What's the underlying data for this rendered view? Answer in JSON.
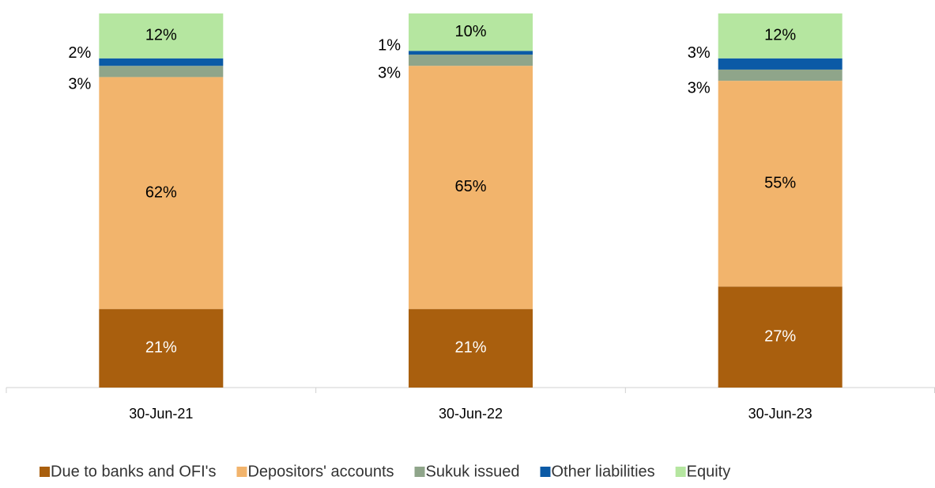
{
  "chart_data": {
    "type": "stacked_bar",
    "categories": [
      "30-Jun-21",
      "30-Jun-22",
      "30-Jun-23"
    ],
    "ylim": [
      0,
      100
    ],
    "series": [
      {
        "name": "Due to banks and OFI's",
        "color": "#a95f0e",
        "values": [
          21,
          21,
          27
        ],
        "value_labels": [
          "21%",
          "21%",
          "27%"
        ]
      },
      {
        "name": "Depositors' accounts",
        "color": "#f2b46c",
        "values": [
          62,
          65,
          55
        ],
        "value_labels": [
          "62%",
          "65%",
          "55%"
        ]
      },
      {
        "name": "Sukuk issued",
        "color": "#8fa58a",
        "values": [
          3,
          3,
          3
        ],
        "value_labels": [
          "3%",
          "3%",
          "3%"
        ]
      },
      {
        "name": "Other liabilities",
        "color": "#0b5aa6",
        "values": [
          2,
          1,
          3
        ],
        "value_labels": [
          "2%",
          "1%",
          "3%"
        ]
      },
      {
        "name": "Equity",
        "color": "#b5e6a0",
        "values": [
          12,
          10,
          12
        ],
        "value_labels": [
          "12%",
          "10%",
          "12%"
        ]
      }
    ],
    "legend": "bottom"
  }
}
